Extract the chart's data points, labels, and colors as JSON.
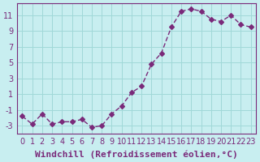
{
  "x": [
    0,
    1,
    2,
    3,
    4,
    5,
    6,
    7,
    8,
    9,
    10,
    11,
    12,
    13,
    14,
    15,
    16,
    17,
    18,
    19,
    20,
    21,
    22,
    23
  ],
  "y": [
    -1.8,
    -2.8,
    -1.5,
    -2.8,
    -2.5,
    -2.5,
    -2.2,
    -3.2,
    -3.0,
    -1.5,
    -0.5,
    1.2,
    2.0,
    4.8,
    6.2,
    9.5,
    11.5,
    11.8,
    11.5,
    10.5,
    10.2,
    11.0,
    9.8,
    9.5
  ],
  "line_color": "#7a2a7a",
  "marker": "D",
  "marker_size": 3,
  "background_color": "#c8eef0",
  "grid_color": "#a0d8d8",
  "xlabel": "Windchill (Refroidissement éolien,°C)",
  "xlabel_fontsize": 8,
  "tick_fontsize": 7,
  "xlim": [
    -0.5,
    23.5
  ],
  "ylim": [
    -4,
    12.5
  ],
  "yticks": [
    -3,
    -1,
    1,
    3,
    5,
    7,
    9,
    11
  ],
  "xticks": [
    0,
    1,
    2,
    3,
    4,
    5,
    6,
    7,
    8,
    9,
    10,
    11,
    12,
    13,
    14,
    15,
    16,
    17,
    18,
    19,
    20,
    21,
    22,
    23
  ]
}
